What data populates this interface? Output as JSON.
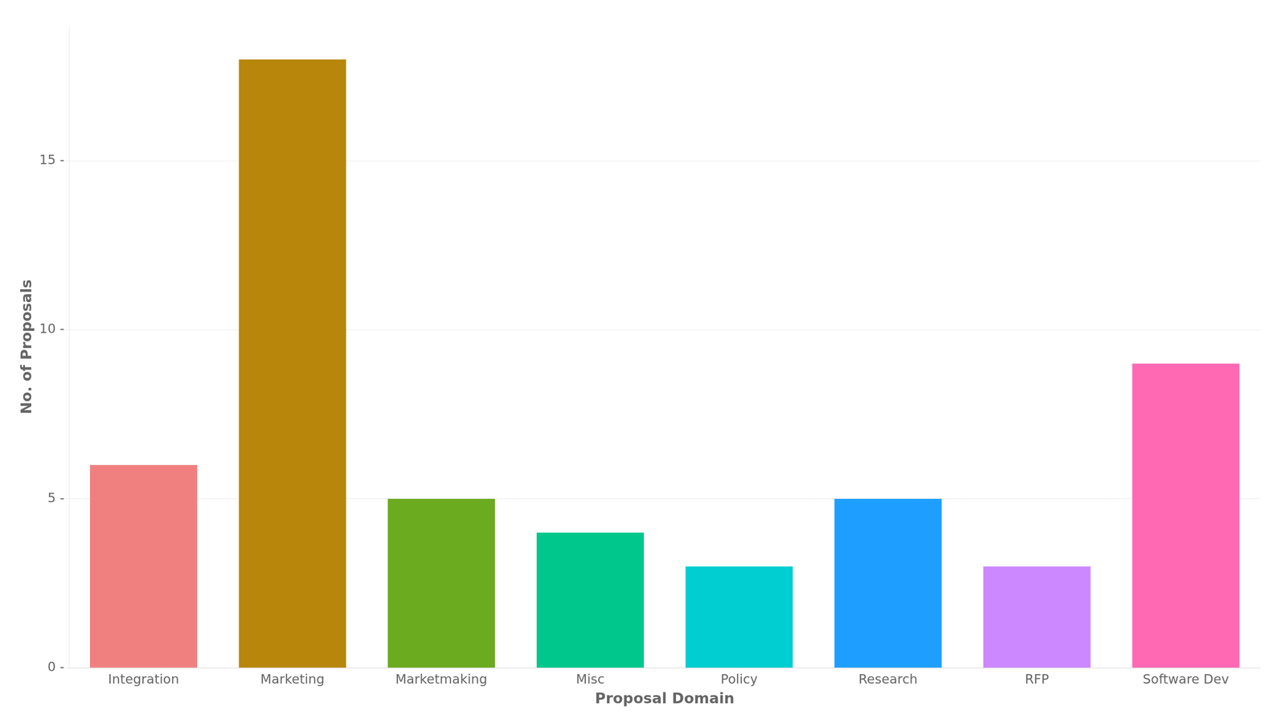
{
  "chart_data": {
    "type": "bar",
    "categories": [
      "Integration",
      "Marketing",
      "Marketmaking",
      "Misc",
      "Policy",
      "Research",
      "RFP",
      "Software Dev"
    ],
    "values": [
      6,
      18,
      5,
      4,
      3,
      5,
      3,
      9
    ],
    "colors": [
      "#F08080",
      "#B8860B",
      "#6BAB20",
      "#00C78C",
      "#00CED1",
      "#1E9FFF",
      "#CC88FF",
      "#FF69B4"
    ],
    "xlabel": "Proposal Domain",
    "ylabel": "No. of Proposals",
    "ylim": [
      0,
      19
    ],
    "yticks": [
      {
        "value": 0,
        "label": "0 -"
      },
      {
        "value": 5,
        "label": "5 -"
      },
      {
        "value": 10,
        "label": "10 -"
      },
      {
        "value": 15,
        "label": "15 -"
      }
    ],
    "grid": true
  }
}
